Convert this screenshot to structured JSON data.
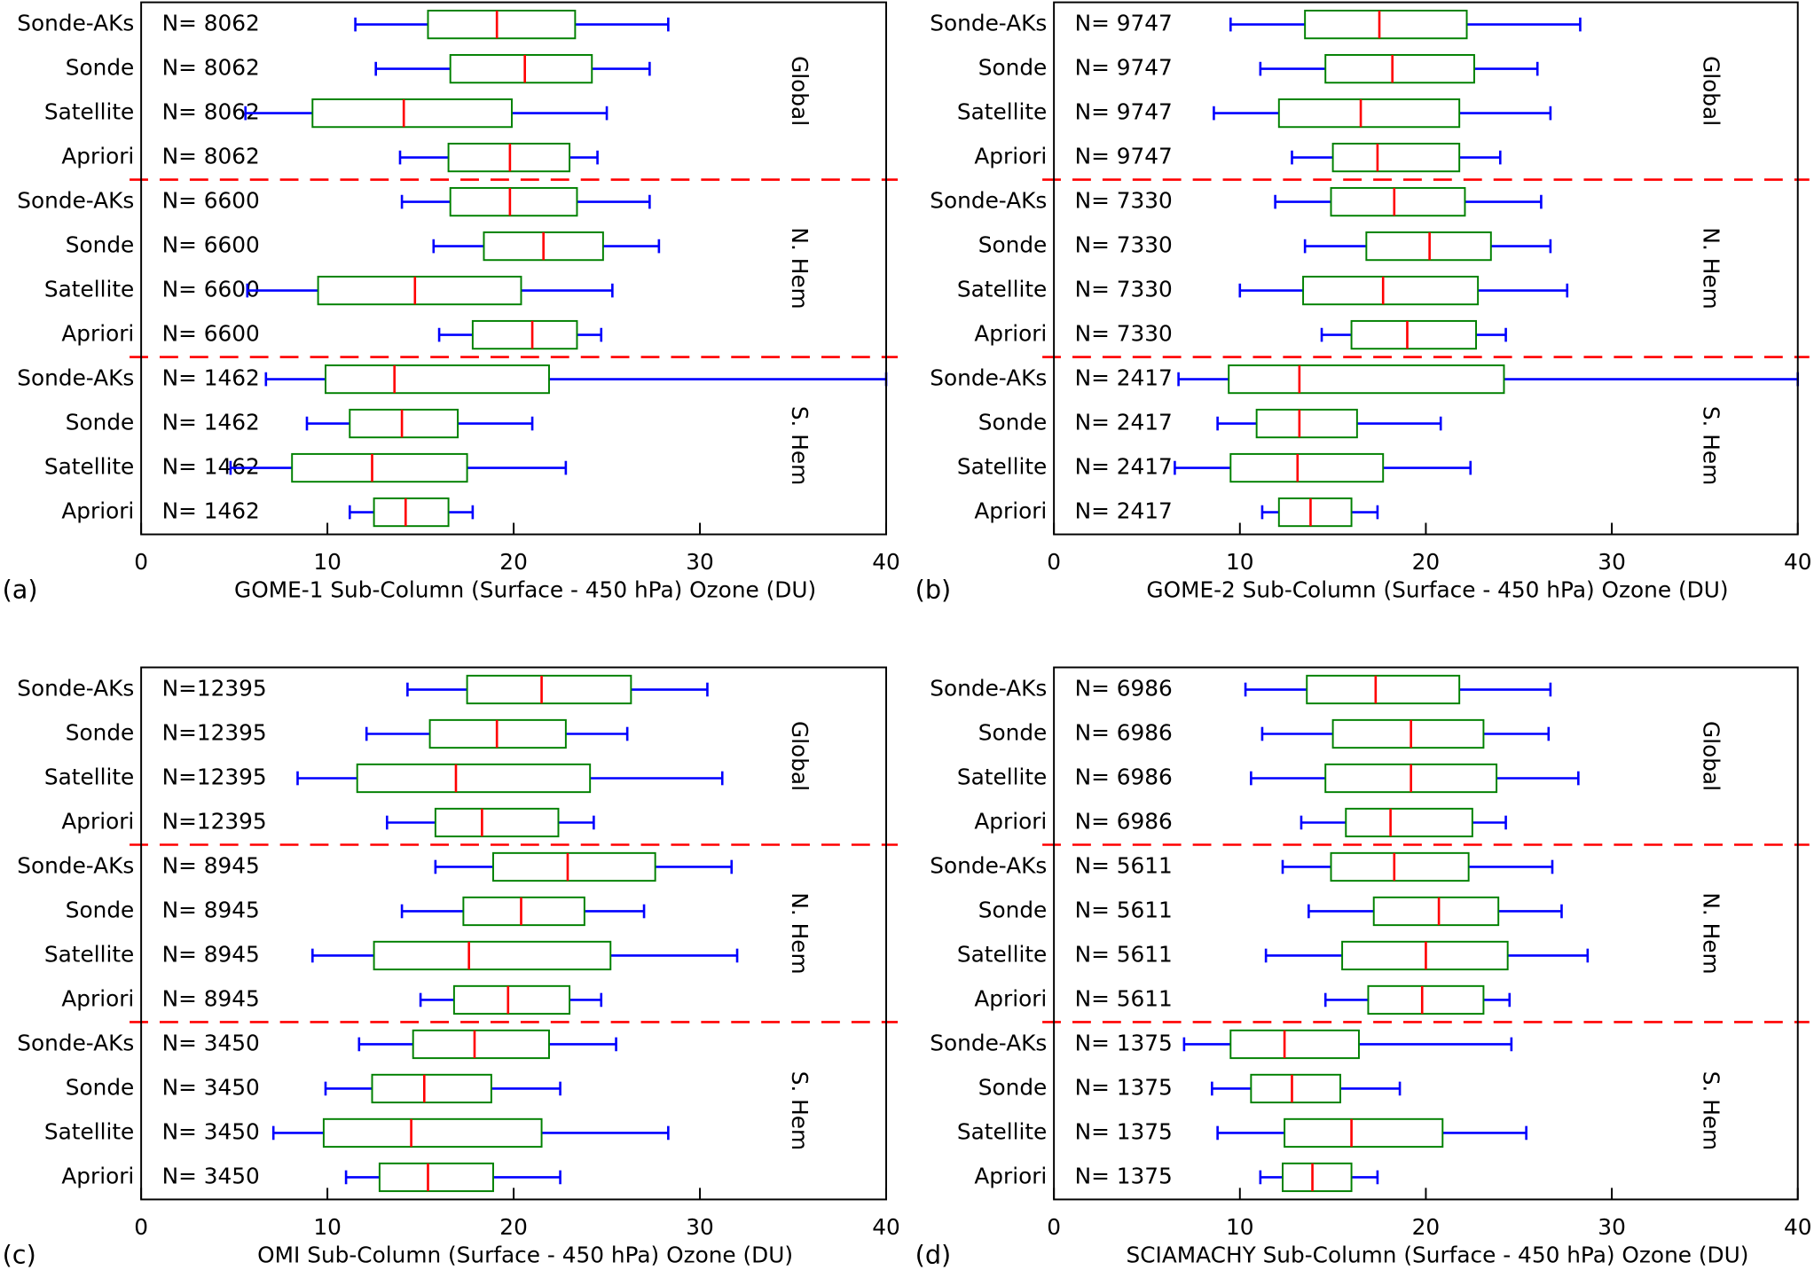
{
  "chart_data": [
    {
      "type": "box",
      "panel_label": "(a)",
      "xlabel": "GOME-1 Sub-Column (Surface - 450 hPa) Ozone (DU)",
      "xlim": [
        0,
        40
      ],
      "xticks": [
        0,
        10,
        20,
        30,
        40
      ],
      "regions": [
        "Global",
        "N. Hem",
        "S. Hem"
      ],
      "whisker_color": "#0000ff",
      "box_color": "#008000",
      "median_color": "#ff0000",
      "separator_color": "#ff0000",
      "categories": [
        "Sonde-AKs",
        "Sonde",
        "Satellite",
        "Apriori",
        "Sonde-AKs",
        "Sonde",
        "Satellite",
        "Apriori",
        "Sonde-AKs",
        "Sonde",
        "Satellite",
        "Apriori"
      ],
      "n_labels": [
        "N= 8062",
        "N= 8062",
        "N= 8062",
        "N= 8062",
        "N= 6600",
        "N= 6600",
        "N= 6600",
        "N= 6600",
        "N= 1462",
        "N= 1462",
        "N= 1462",
        "N= 1462"
      ],
      "values": [
        [
          11.5,
          15.4,
          19.1,
          23.3,
          28.3
        ],
        [
          12.6,
          16.6,
          20.6,
          24.2,
          27.3
        ],
        [
          5.6,
          9.2,
          14.1,
          19.9,
          25.0
        ],
        [
          13.9,
          16.5,
          19.8,
          23.0,
          24.5
        ],
        [
          14.0,
          16.6,
          19.8,
          23.4,
          27.3
        ],
        [
          15.7,
          18.4,
          21.6,
          24.8,
          27.8
        ],
        [
          5.7,
          9.5,
          14.7,
          20.4,
          25.3
        ],
        [
          16.0,
          17.8,
          21.0,
          23.4,
          24.7
        ],
        [
          6.7,
          9.9,
          13.6,
          21.9,
          40
        ],
        [
          8.9,
          11.2,
          14.0,
          17.0,
          21.0
        ],
        [
          4.8,
          8.1,
          12.4,
          17.5,
          22.8
        ],
        [
          11.2,
          12.5,
          14.2,
          16.5,
          17.8
        ]
      ]
    },
    {
      "type": "box",
      "panel_label": "(b)",
      "xlabel": "GOME-2 Sub-Column (Surface - 450 hPa) Ozone (DU)",
      "xlim": [
        0,
        40
      ],
      "xticks": [
        0,
        10,
        20,
        30,
        40
      ],
      "regions": [
        "Global",
        "N. Hem",
        "S. Hem"
      ],
      "whisker_color": "#0000ff",
      "box_color": "#008000",
      "median_color": "#ff0000",
      "separator_color": "#ff0000",
      "categories": [
        "Sonde-AKs",
        "Sonde",
        "Satellite",
        "Apriori",
        "Sonde-AKs",
        "Sonde",
        "Satellite",
        "Apriori",
        "Sonde-AKs",
        "Sonde",
        "Satellite",
        "Apriori"
      ],
      "n_labels": [
        "N= 9747",
        "N= 9747",
        "N= 9747",
        "N= 9747",
        "N= 7330",
        "N= 7330",
        "N= 7330",
        "N= 7330",
        "N= 2417",
        "N= 2417",
        "N= 2417",
        "N= 2417"
      ],
      "values": [
        [
          9.5,
          13.5,
          17.5,
          22.2,
          28.3
        ],
        [
          11.1,
          14.6,
          18.2,
          22.6,
          26.0
        ],
        [
          8.6,
          12.1,
          16.5,
          21.8,
          26.7
        ],
        [
          12.8,
          15.0,
          17.4,
          21.8,
          24.0
        ],
        [
          11.9,
          14.9,
          18.3,
          22.1,
          26.2
        ],
        [
          13.5,
          16.8,
          20.2,
          23.5,
          26.7
        ],
        [
          10.0,
          13.4,
          17.7,
          22.8,
          27.6
        ],
        [
          14.4,
          16.0,
          19.0,
          22.7,
          24.3
        ],
        [
          6.7,
          9.4,
          13.2,
          24.2,
          40
        ],
        [
          8.8,
          10.9,
          13.2,
          16.3,
          20.8
        ],
        [
          6.5,
          9.5,
          13.1,
          17.7,
          22.4
        ],
        [
          11.2,
          12.1,
          13.8,
          16.0,
          17.4
        ]
      ]
    },
    {
      "type": "box",
      "panel_label": "(c)",
      "xlabel": "OMI Sub-Column (Surface - 450 hPa) Ozone (DU)",
      "xlim": [
        0,
        40
      ],
      "xticks": [
        0,
        10,
        20,
        30,
        40
      ],
      "regions": [
        "Global",
        "N. Hem",
        "S. Hem"
      ],
      "whisker_color": "#0000ff",
      "box_color": "#008000",
      "median_color": "#ff0000",
      "separator_color": "#ff0000",
      "categories": [
        "Sonde-AKs",
        "Sonde",
        "Satellite",
        "Apriori",
        "Sonde-AKs",
        "Sonde",
        "Satellite",
        "Apriori",
        "Sonde-AKs",
        "Sonde",
        "Satellite",
        "Apriori"
      ],
      "n_labels": [
        "N=12395",
        "N=12395",
        "N=12395",
        "N=12395",
        "N= 8945",
        "N= 8945",
        "N= 8945",
        "N= 8945",
        "N= 3450",
        "N= 3450",
        "N= 3450",
        "N= 3450"
      ],
      "values": [
        [
          14.3,
          17.5,
          21.5,
          26.3,
          30.4
        ],
        [
          12.1,
          15.5,
          19.1,
          22.8,
          26.1
        ],
        [
          8.4,
          11.6,
          16.9,
          24.1,
          31.2
        ],
        [
          13.2,
          15.8,
          18.3,
          22.4,
          24.3
        ],
        [
          15.8,
          18.9,
          22.9,
          27.6,
          31.7
        ],
        [
          14.0,
          17.3,
          20.4,
          23.8,
          27.0
        ],
        [
          9.2,
          12.5,
          17.6,
          25.2,
          32.0
        ],
        [
          15.0,
          16.8,
          19.7,
          23.0,
          24.7
        ],
        [
          11.7,
          14.6,
          17.9,
          21.9,
          25.5
        ],
        [
          9.9,
          12.4,
          15.2,
          18.8,
          22.5
        ],
        [
          7.1,
          9.8,
          14.5,
          21.5,
          28.3
        ],
        [
          11.0,
          12.8,
          15.4,
          18.9,
          22.5
        ]
      ]
    },
    {
      "type": "box",
      "panel_label": "(d)",
      "xlabel": "SCIAMACHY Sub-Column (Surface - 450 hPa) Ozone (DU)",
      "xlim": [
        0,
        40
      ],
      "xticks": [
        0,
        10,
        20,
        30,
        40
      ],
      "regions": [
        "Global",
        "N. Hem",
        "S. Hem"
      ],
      "whisker_color": "#0000ff",
      "box_color": "#008000",
      "median_color": "#ff0000",
      "separator_color": "#ff0000",
      "categories": [
        "Sonde-AKs",
        "Sonde",
        "Satellite",
        "Apriori",
        "Sonde-AKs",
        "Sonde",
        "Satellite",
        "Apriori",
        "Sonde-AKs",
        "Sonde",
        "Satellite",
        "Apriori"
      ],
      "n_labels": [
        "N= 6986",
        "N= 6986",
        "N= 6986",
        "N= 6986",
        "N= 5611",
        "N= 5611",
        "N= 5611",
        "N= 5611",
        "N= 1375",
        "N= 1375",
        "N= 1375",
        "N= 1375"
      ],
      "values": [
        [
          10.3,
          13.6,
          17.3,
          21.8,
          26.7
        ],
        [
          11.2,
          15.0,
          19.2,
          23.1,
          26.6
        ],
        [
          10.6,
          14.6,
          19.2,
          23.8,
          28.2
        ],
        [
          13.3,
          15.7,
          18.1,
          22.5,
          24.3
        ],
        [
          12.3,
          14.9,
          18.3,
          22.3,
          26.8
        ],
        [
          13.7,
          17.2,
          20.7,
          23.9,
          27.3
        ],
        [
          11.4,
          15.5,
          20.0,
          24.4,
          28.7
        ],
        [
          14.6,
          16.9,
          19.8,
          23.1,
          24.5
        ],
        [
          7.0,
          9.5,
          12.4,
          16.4,
          24.6
        ],
        [
          8.5,
          10.6,
          12.8,
          15.4,
          18.6
        ],
        [
          8.8,
          12.4,
          16.0,
          20.9,
          25.4
        ],
        [
          11.1,
          12.3,
          13.9,
          16.0,
          17.4
        ]
      ]
    }
  ]
}
